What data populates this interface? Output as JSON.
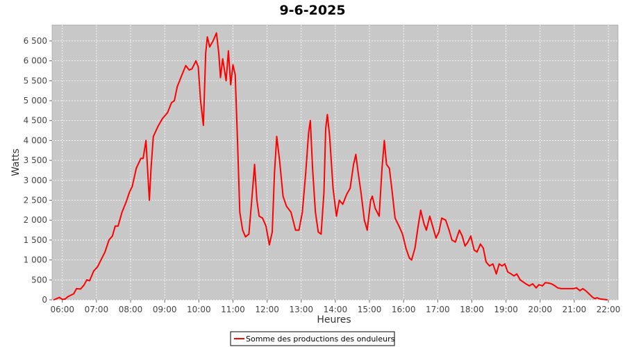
{
  "chart_data": {
    "type": "line",
    "title": "9-6-2025",
    "xlabel": "Heures",
    "ylabel": "Watts",
    "xlim": [
      "05:42",
      "22:17"
    ],
    "ylim": [
      0,
      6900
    ],
    "grid": true,
    "legend_placement": "bottom-center",
    "x_ticks": [
      "06:00",
      "07:00",
      "08:00",
      "09:00",
      "10:00",
      "11:00",
      "12:00",
      "13:00",
      "14:00",
      "15:00",
      "16:00",
      "17:00",
      "18:00",
      "19:00",
      "20:00",
      "21:00",
      "22:00"
    ],
    "y_ticks": [
      0,
      500,
      1000,
      1500,
      2000,
      2500,
      3000,
      3500,
      4000,
      4500,
      5000,
      5500,
      6000,
      6500
    ],
    "y_tick_labels": [
      "0",
      "500",
      "1 000",
      "1 500",
      "2 000",
      "2 500",
      "3 000",
      "3 500",
      "4 000",
      "4 500",
      "5 000",
      "5 500",
      "6 000",
      "6 500"
    ],
    "colors": {
      "plot_bg": "#c8c8c8",
      "grid": "#ffffff",
      "series": "#ff0000"
    },
    "series": [
      {
        "name": "Somme des productions des onduleurs",
        "points": [
          [
            "05:45",
            0
          ],
          [
            "05:55",
            60
          ],
          [
            "06:00",
            10
          ],
          [
            "06:05",
            20
          ],
          [
            "06:10",
            80
          ],
          [
            "06:20",
            150
          ],
          [
            "06:25",
            280
          ],
          [
            "06:32",
            270
          ],
          [
            "06:38",
            370
          ],
          [
            "06:43",
            500
          ],
          [
            "06:48",
            480
          ],
          [
            "06:55",
            720
          ],
          [
            "07:02",
            830
          ],
          [
            "07:08",
            1000
          ],
          [
            "07:15",
            1200
          ],
          [
            "07:22",
            1500
          ],
          [
            "07:28",
            1600
          ],
          [
            "07:33",
            1850
          ],
          [
            "07:38",
            1850
          ],
          [
            "07:45",
            2200
          ],
          [
            "07:52",
            2450
          ],
          [
            "07:58",
            2700
          ],
          [
            "08:03",
            2850
          ],
          [
            "08:10",
            3300
          ],
          [
            "08:18",
            3550
          ],
          [
            "08:22",
            3550
          ],
          [
            "08:27",
            4000
          ],
          [
            "08:31",
            3000
          ],
          [
            "08:33",
            2500
          ],
          [
            "08:36",
            3300
          ],
          [
            "08:40",
            4100
          ],
          [
            "08:48",
            4350
          ],
          [
            "08:56",
            4550
          ],
          [
            "09:05",
            4700
          ],
          [
            "09:12",
            4950
          ],
          [
            "09:17",
            5000
          ],
          [
            "09:22",
            5350
          ],
          [
            "09:29",
            5600
          ],
          [
            "09:37",
            5880
          ],
          [
            "09:43",
            5770
          ],
          [
            "09:48",
            5800
          ],
          [
            "09:55",
            6000
          ],
          [
            "09:59",
            5850
          ],
          [
            "10:03",
            5000
          ],
          [
            "10:08",
            4380
          ],
          [
            "10:12",
            6200
          ],
          [
            "10:15",
            6600
          ],
          [
            "10:19",
            6350
          ],
          [
            "10:25",
            6500
          ],
          [
            "10:31",
            6700
          ],
          [
            "10:35",
            6200
          ],
          [
            "10:38",
            5580
          ],
          [
            "10:42",
            6050
          ],
          [
            "10:48",
            5500
          ],
          [
            "10:52",
            6250
          ],
          [
            "10:56",
            5400
          ],
          [
            "11:00",
            5900
          ],
          [
            "11:04",
            5650
          ],
          [
            "11:08",
            4000
          ],
          [
            "11:12",
            2200
          ],
          [
            "11:17",
            1750
          ],
          [
            "11:22",
            1580
          ],
          [
            "11:28",
            1650
          ],
          [
            "11:33",
            2500
          ],
          [
            "11:38",
            3400
          ],
          [
            "11:42",
            2500
          ],
          [
            "11:46",
            2100
          ],
          [
            "11:52",
            2050
          ],
          [
            "11:58",
            1850
          ],
          [
            "12:04",
            1380
          ],
          [
            "12:09",
            1700
          ],
          [
            "12:13",
            3200
          ],
          [
            "12:17",
            4100
          ],
          [
            "12:22",
            3500
          ],
          [
            "12:28",
            2600
          ],
          [
            "12:34",
            2350
          ],
          [
            "12:42",
            2200
          ],
          [
            "12:50",
            1750
          ],
          [
            "12:56",
            1750
          ],
          [
            "13:02",
            2200
          ],
          [
            "13:08",
            3200
          ],
          [
            "13:13",
            4200
          ],
          [
            "13:16",
            4500
          ],
          [
            "13:20",
            3300
          ],
          [
            "13:25",
            2200
          ],
          [
            "13:30",
            1700
          ],
          [
            "13:35",
            1650
          ],
          [
            "13:40",
            2700
          ],
          [
            "13:43",
            4300
          ],
          [
            "13:46",
            4650
          ],
          [
            "13:50",
            4100
          ],
          [
            "13:56",
            2800
          ],
          [
            "14:02",
            2100
          ],
          [
            "14:07",
            2500
          ],
          [
            "14:13",
            2400
          ],
          [
            "14:20",
            2650
          ],
          [
            "14:26",
            2800
          ],
          [
            "14:32",
            3400
          ],
          [
            "14:36",
            3650
          ],
          [
            "14:40",
            3200
          ],
          [
            "14:45",
            2700
          ],
          [
            "14:51",
            2000
          ],
          [
            "14:56",
            1750
          ],
          [
            "15:02",
            2500
          ],
          [
            "15:05",
            2600
          ],
          [
            "15:10",
            2300
          ],
          [
            "15:17",
            2100
          ],
          [
            "15:22",
            3300
          ],
          [
            "15:26",
            4000
          ],
          [
            "15:30",
            3400
          ],
          [
            "15:35",
            3300
          ],
          [
            "15:40",
            2700
          ],
          [
            "15:45",
            2050
          ],
          [
            "15:52",
            1850
          ],
          [
            "15:58",
            1650
          ],
          [
            "16:04",
            1300
          ],
          [
            "16:10",
            1050
          ],
          [
            "16:14",
            1000
          ],
          [
            "16:20",
            1300
          ],
          [
            "16:25",
            1800
          ],
          [
            "16:30",
            2250
          ],
          [
            "16:36",
            1900
          ],
          [
            "16:40",
            1750
          ],
          [
            "16:46",
            2100
          ],
          [
            "16:52",
            1800
          ],
          [
            "16:57",
            1550
          ],
          [
            "17:02",
            1700
          ],
          [
            "17:07",
            2050
          ],
          [
            "17:14",
            2000
          ],
          [
            "17:20",
            1750
          ],
          [
            "17:25",
            1500
          ],
          [
            "17:31",
            1450
          ],
          [
            "17:38",
            1750
          ],
          [
            "17:43",
            1600
          ],
          [
            "17:48",
            1350
          ],
          [
            "17:53",
            1450
          ],
          [
            "17:58",
            1600
          ],
          [
            "18:04",
            1250
          ],
          [
            "18:09",
            1200
          ],
          [
            "18:15",
            1400
          ],
          [
            "18:20",
            1300
          ],
          [
            "18:25",
            950
          ],
          [
            "18:31",
            850
          ],
          [
            "18:37",
            900
          ],
          [
            "18:43",
            650
          ],
          [
            "18:48",
            900
          ],
          [
            "18:53",
            850
          ],
          [
            "18:58",
            900
          ],
          [
            "19:03",
            700
          ],
          [
            "19:09",
            650
          ],
          [
            "19:14",
            600
          ],
          [
            "19:19",
            650
          ],
          [
            "19:25",
            500
          ],
          [
            "19:30",
            450
          ],
          [
            "19:35",
            400
          ],
          [
            "19:41",
            350
          ],
          [
            "19:47",
            400
          ],
          [
            "19:53",
            300
          ],
          [
            "19:58",
            380
          ],
          [
            "20:04",
            350
          ],
          [
            "20:09",
            430
          ],
          [
            "20:15",
            420
          ],
          [
            "20:20",
            400
          ],
          [
            "20:26",
            350
          ],
          [
            "20:31",
            300
          ],
          [
            "20:37",
            280
          ],
          [
            "20:47",
            280
          ],
          [
            "20:53",
            280
          ],
          [
            "20:59",
            280
          ],
          [
            "21:04",
            300
          ],
          [
            "21:10",
            230
          ],
          [
            "21:15",
            280
          ],
          [
            "21:20",
            230
          ],
          [
            "21:26",
            150
          ],
          [
            "21:31",
            80
          ],
          [
            "21:36",
            30
          ],
          [
            "21:40",
            50
          ],
          [
            "21:46",
            20
          ],
          [
            "21:52",
            10
          ],
          [
            "21:58",
            0
          ]
        ]
      }
    ]
  }
}
